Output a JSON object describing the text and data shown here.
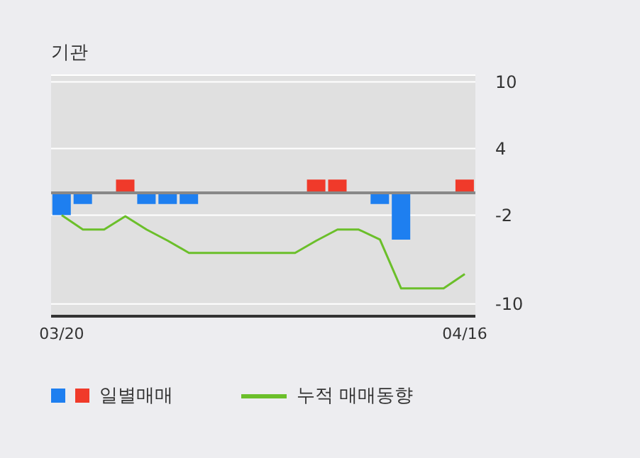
{
  "chart_data": {
    "type": "bar",
    "title": "기관",
    "categories": [
      "03/20",
      null,
      null,
      null,
      null,
      null,
      null,
      null,
      null,
      null,
      null,
      null,
      null,
      null,
      null,
      null,
      null,
      null,
      null,
      "04/16"
    ],
    "series": [
      {
        "name": "일별매매",
        "colors": [
          "#1e7ff0",
          "#1e7ff0",
          "#1e7ff0",
          "#f03a2a",
          "#1e7ff0",
          "#1e7ff0",
          "#1e7ff0",
          "#1e7ff0",
          "#1e7ff0",
          "#1e7ff0",
          "#1e7ff0",
          "#1e7ff0",
          "#f03a2a",
          "#f03a2a",
          "#1e7ff0",
          "#1e7ff0",
          "#1e7ff0",
          "#1e7ff0",
          "#1e7ff0",
          "#f03a2a"
        ],
        "values": [
          -2,
          -1,
          0,
          1.2,
          -1,
          -1,
          -1,
          0,
          0,
          0,
          0,
          0,
          1.2,
          1.2,
          0,
          -1,
          -4.2,
          0,
          0,
          1.2
        ]
      },
      {
        "name": "누적 매매동향",
        "type": "line",
        "color": "#6bbf2a",
        "values": [
          -2,
          -3.3,
          -3.3,
          -2.1,
          -3.3,
          -4.3,
          -5.4,
          -5.4,
          -5.4,
          -5.4,
          -5.4,
          -5.4,
          -4.3,
          -3.3,
          -3.3,
          -4.2,
          -8.6,
          -8.6,
          -8.6,
          -7.3
        ]
      }
    ],
    "ylim": [
      -11.1,
      10.6
    ],
    "yticks": [
      10,
      4,
      -2,
      -10
    ],
    "grid": "y",
    "legend": "bottom",
    "marker": "none",
    "ref_lines": [
      {
        "axis": "y",
        "value": 0,
        "color": "#888888"
      }
    ]
  }
}
